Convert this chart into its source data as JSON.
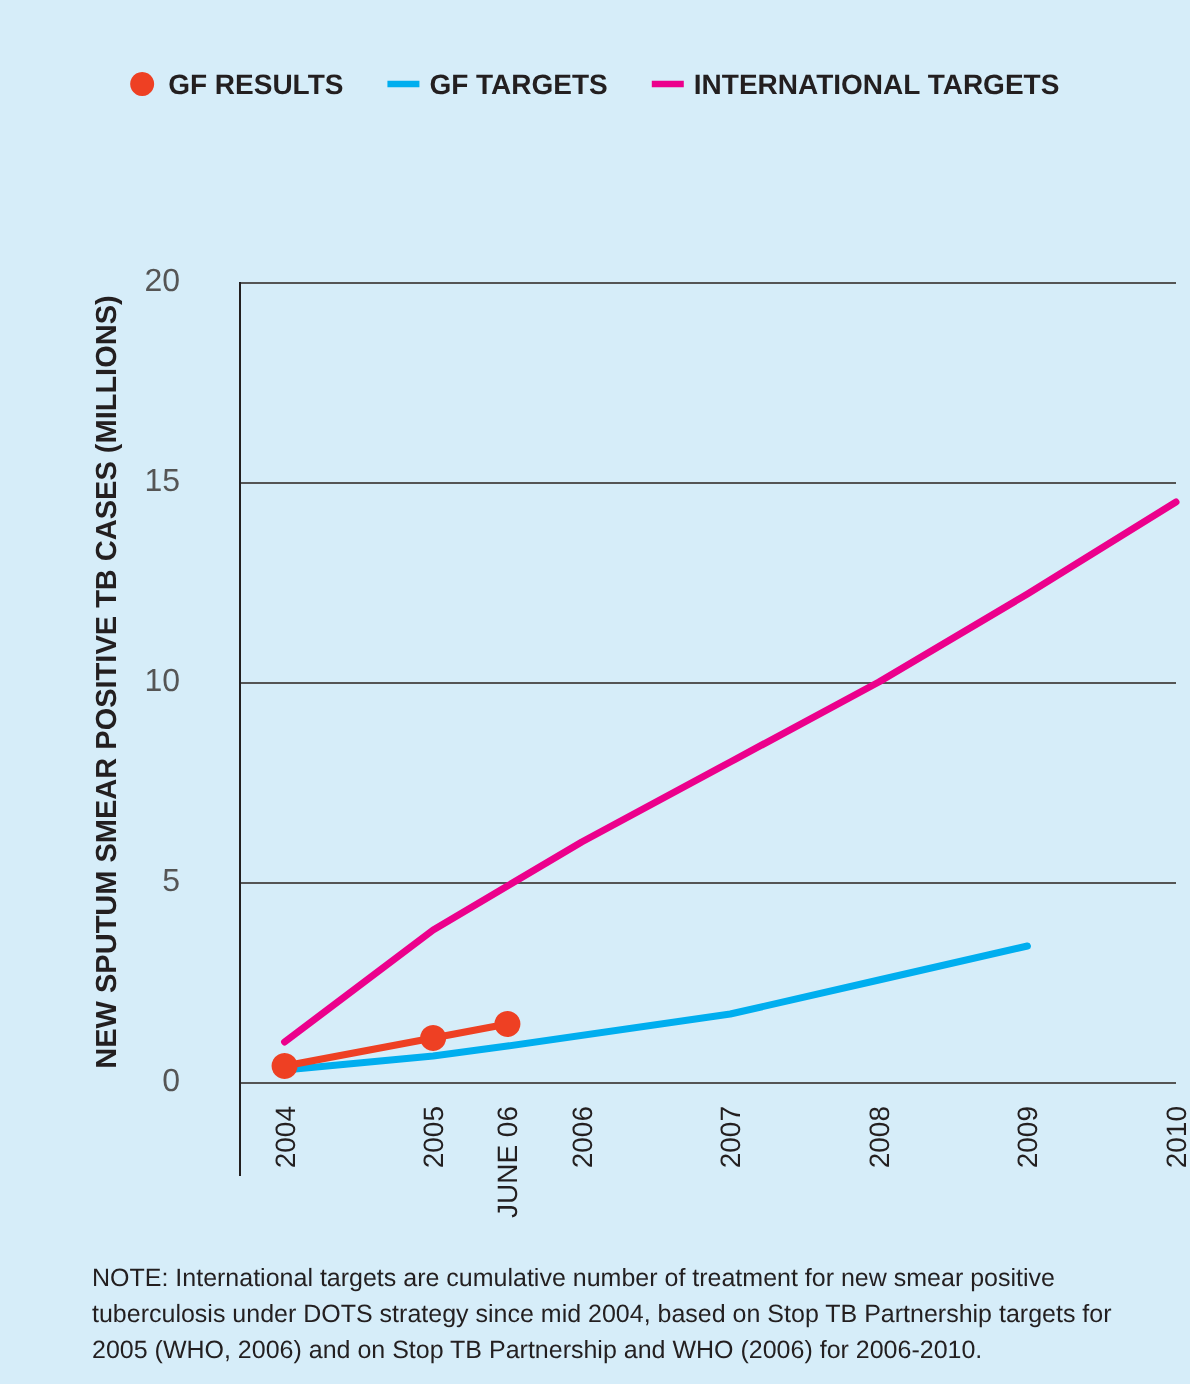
{
  "chart_data": {
    "type": "line",
    "ylabel": "NEW SPUTUM SMEAR POSITIVE TB CASES (MILLIONS)",
    "xlim": [
      2003.7,
      2010
    ],
    "xticks": [
      2004,
      2005,
      {
        "value": 2005.5,
        "label": "JUNE 06"
      },
      2006,
      2007,
      2008,
      2009,
      2010
    ],
    "ylim": [
      0,
      20
    ],
    "yticks": [
      0,
      5,
      10,
      15,
      20
    ],
    "grid": "y",
    "legend": "top",
    "series": [
      {
        "name": "GF RESULTS",
        "color": "#ee4023",
        "marker": "circle",
        "x": [
          2004,
          2005,
          2005.5
        ],
        "values": [
          0.4,
          1.1,
          1.45
        ]
      },
      {
        "name": "GF TARGETS",
        "color": "#00aeef",
        "marker": "none",
        "x": [
          2004,
          2005,
          2005.5,
          2007,
          2008,
          2009
        ],
        "values": [
          0.3,
          0.65,
          0.9,
          1.7,
          2.55,
          3.4
        ]
      },
      {
        "name": "INTERNATIONAL TARGETS",
        "color": "#ec008c",
        "marker": "none",
        "x": [
          2004,
          2005,
          2005.5,
          2006,
          2007,
          2008,
          2009,
          2010
        ],
        "values": [
          1.0,
          3.8,
          4.9,
          6.0,
          8.0,
          10.0,
          12.2,
          14.5
        ]
      }
    ],
    "annotations": [
      "NOTE: International targets are cumulative number of treatment for new smear positive tuberculosis under DOTS strategy since mid 2004, based on Stop TB Partnership targets for 2005 (WHO, 2006) and on Stop TB Partnership and WHO (2006) for 2006-2010."
    ]
  }
}
